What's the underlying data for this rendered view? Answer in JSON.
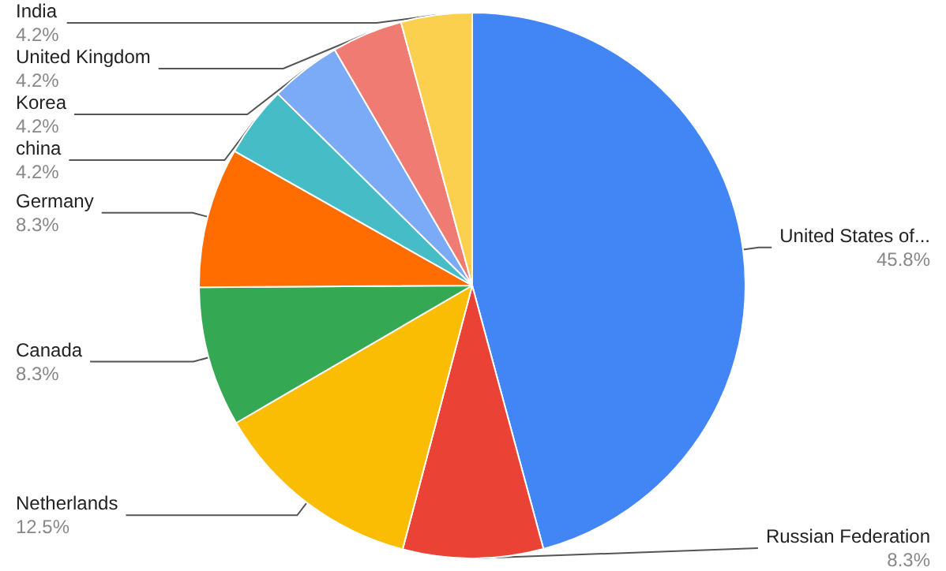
{
  "chart_data": {
    "type": "pie",
    "categories": [
      "United States of...",
      "Russian Federation",
      "Netherlands",
      "Canada",
      "Germany",
      "china",
      "Korea",
      "United Kingdom",
      "India"
    ],
    "values": [
      45.8,
      8.3,
      12.5,
      8.3,
      8.3,
      4.2,
      4.2,
      4.2,
      4.2
    ],
    "value_labels": [
      "45.8%",
      "8.3%",
      "12.5%",
      "8.3%",
      "8.3%",
      "4.2%",
      "4.2%",
      "4.2%",
      "4.2%"
    ],
    "colors": [
      "#4285f4",
      "#ea4335",
      "#fbbc04",
      "#34a853",
      "#ff6d01",
      "#46bdc6",
      "#7baaf7",
      "#f07b72",
      "#fcd04f"
    ],
    "legend": false
  }
}
